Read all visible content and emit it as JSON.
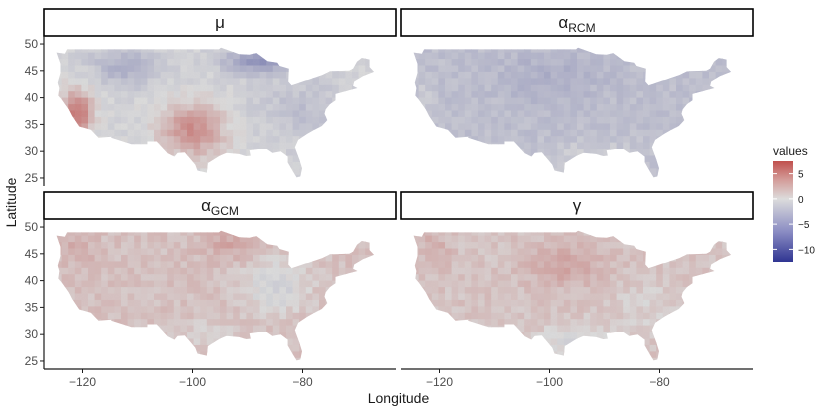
{
  "chart_data": {
    "type": "heatmap",
    "xlabel": "Longitude",
    "ylabel": "Latitude",
    "xticks": [
      -120,
      -100,
      -80
    ],
    "yticks": [
      25,
      30,
      35,
      40,
      45,
      50
    ],
    "xlim": [
      -127,
      -63
    ],
    "ylim": [
      23.5,
      51.5
    ],
    "panels": [
      {
        "label": "μ",
        "sub": ""
      },
      {
        "label": "α",
        "sub": "RCM"
      },
      {
        "label": "α",
        "sub": "GCM"
      },
      {
        "label": "γ",
        "sub": ""
      }
    ],
    "legend": {
      "title": "values",
      "ticks": [
        5,
        0,
        -5,
        -10
      ],
      "range": [
        -12.5,
        7.5
      ],
      "colors": {
        "high": "#c0504d",
        "mid": "#dcdcdc",
        "low": "#2f3592"
      }
    },
    "grid": false
  }
}
